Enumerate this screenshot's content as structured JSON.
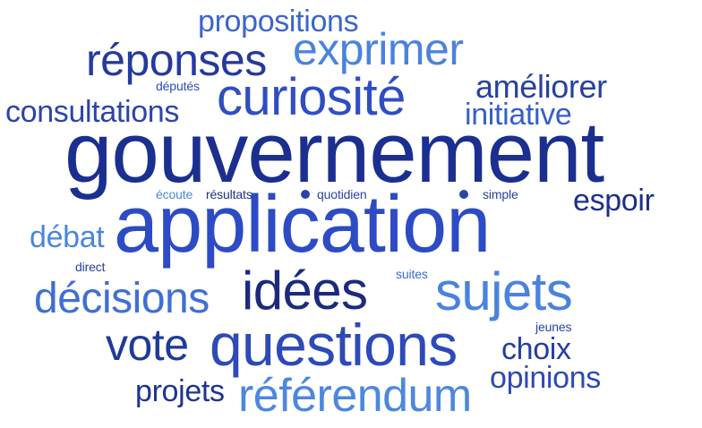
{
  "words": [
    {
      "id": "gouvernement",
      "text": "gouvernement",
      "color": "#1a2f8f"
    },
    {
      "id": "application",
      "text": "application",
      "color": "#2d4bc4"
    },
    {
      "id": "questions",
      "text": "questions",
      "color": "#2d4ab7"
    },
    {
      "id": "curiosite",
      "text": "curiosité",
      "color": "#2f4ec2"
    },
    {
      "id": "idees",
      "text": "idées",
      "color": "#1c2a7e"
    },
    {
      "id": "sujets",
      "text": "sujets",
      "color": "#4a83dd"
    },
    {
      "id": "decisions",
      "text": "décisions",
      "color": "#3f6fd4"
    },
    {
      "id": "referendum",
      "text": "référendum",
      "color": "#4d87de"
    },
    {
      "id": "reponses",
      "text": "réponses",
      "color": "#253a9f"
    },
    {
      "id": "exprimer",
      "text": "exprimer",
      "color": "#4a83dd"
    },
    {
      "id": "vote",
      "text": "vote",
      "color": "#203a98"
    },
    {
      "id": "propositions",
      "text": "propositions",
      "color": "#3b66cb"
    },
    {
      "id": "consultations",
      "text": "consultations",
      "color": "#2c45a8"
    },
    {
      "id": "ameliorer",
      "text": "améliorer",
      "color": "#28419f"
    },
    {
      "id": "initiative",
      "text": "initiative",
      "color": "#3660c6"
    },
    {
      "id": "espoir",
      "text": "espoir",
      "color": "#1f2f88"
    },
    {
      "id": "debat",
      "text": "débat",
      "color": "#4b86dd"
    },
    {
      "id": "choix",
      "text": "choix",
      "color": "#253fa0"
    },
    {
      "id": "opinions",
      "text": "opinions",
      "color": "#2d4ab7"
    },
    {
      "id": "projets",
      "text": "projets",
      "color": "#1f3390"
    },
    {
      "id": "deputes",
      "text": "députés",
      "color": "#2e4cb8"
    },
    {
      "id": "ecoute",
      "text": "écoute",
      "color": "#4d87de"
    },
    {
      "id": "resultats",
      "text": "résultats",
      "color": "#1f2f88"
    },
    {
      "id": "quotidien",
      "text": "quotidien",
      "color": "#2c45a8"
    },
    {
      "id": "simple",
      "text": "simple",
      "color": "#28419f"
    },
    {
      "id": "direct",
      "text": "direct",
      "color": "#28419f"
    },
    {
      "id": "suites",
      "text": "suites",
      "color": "#3d6bd0"
    },
    {
      "id": "jeunes",
      "text": "jeunes",
      "color": "#2a43a6"
    }
  ],
  "dots": [
    {
      "id": "dot-quotidien",
      "color": "#2a43a6"
    },
    {
      "id": "dot-simple",
      "color": "#2a43a6"
    }
  ]
}
